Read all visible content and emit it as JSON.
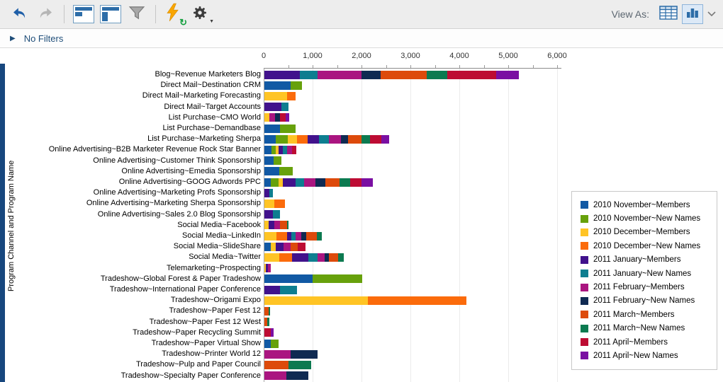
{
  "toolbar": {
    "view_as_label": "View As:",
    "icons": [
      "undo-icon",
      "redo-icon",
      "panel-layout-icon",
      "panel-sidebar-icon",
      "filter-funnel-icon",
      "lightning-refresh-icon",
      "gear-icon",
      "table-view-icon",
      "bar-chart-view-icon",
      "chevron-down-icon"
    ],
    "colors": {
      "toolbar_bg": "#ededed",
      "accent_blue": "#1f5fa8",
      "disabled_gray": "#b5b5b5"
    }
  },
  "filter_bar": {
    "label": "No Filters"
  },
  "chart_data": {
    "type": "bar",
    "orientation": "horizontal",
    "stacked": true,
    "title": "",
    "xlabel": "",
    "ylabel": "Program Channel and Program Name",
    "xlim": [
      0,
      6000
    ],
    "x_ticks": [
      0,
      1000,
      2000,
      3000,
      4000,
      5000,
      6000
    ],
    "grid": "vertical-light",
    "legend_position": "right",
    "series": [
      {
        "key": "novM",
        "label": "2010 November~Members",
        "color": "#1159a4"
      },
      {
        "key": "novN",
        "label": "2010 November~New Names",
        "color": "#67a10b"
      },
      {
        "key": "decM",
        "label": "2010 December~Members",
        "color": "#ffc425"
      },
      {
        "key": "decN",
        "label": "2010 December~New Names",
        "color": "#fb6b0b"
      },
      {
        "key": "janM",
        "label": "2011 January~Members",
        "color": "#41128c"
      },
      {
        "key": "janN",
        "label": "2011 January~New Names",
        "color": "#0e7e90"
      },
      {
        "key": "febM",
        "label": "2011 February~Members",
        "color": "#aa1580"
      },
      {
        "key": "febN",
        "label": "2011 February~New Names",
        "color": "#0f2a52"
      },
      {
        "key": "marM",
        "label": "2011 March~Members",
        "color": "#dd4a0b"
      },
      {
        "key": "marN",
        "label": "2011 March~New Names",
        "color": "#0c7a50"
      },
      {
        "key": "aprM",
        "label": "2011 April~Members",
        "color": "#bd0c33"
      },
      {
        "key": "aprN",
        "label": "2011 April~New Names",
        "color": "#7a0fa2"
      }
    ],
    "rows": [
      {
        "label": "Blog~Revenue Marketers Blog",
        "segments": [
          [
            "janM",
            730
          ],
          [
            "janN",
            350
          ],
          [
            "febM",
            910
          ],
          [
            "febN",
            385
          ],
          [
            "marM",
            950
          ],
          [
            "marN",
            420
          ],
          [
            "aprM",
            1000
          ],
          [
            "aprN",
            465
          ]
        ]
      },
      {
        "label": "Direct Mail~Destination CRM",
        "segments": [
          [
            "novM",
            540
          ],
          [
            "novN",
            225
          ]
        ]
      },
      {
        "label": "Direct Mail~Marketing Forecasting",
        "segments": [
          [
            "decM",
            470
          ],
          [
            "decN",
            165
          ]
        ]
      },
      {
        "label": "Direct Mail~Target Accounts",
        "segments": [
          [
            "janM",
            350
          ],
          [
            "janN",
            145
          ]
        ]
      },
      {
        "label": "List Purchase~CMO World",
        "segments": [
          [
            "decM",
            105
          ],
          [
            "febM",
            115
          ],
          [
            "febN",
            95
          ],
          [
            "aprM",
            120
          ],
          [
            "aprN",
            70
          ]
        ]
      },
      {
        "label": "List Purchase~Demandbase",
        "segments": [
          [
            "novM",
            325
          ],
          [
            "novN",
            315
          ]
        ]
      },
      {
        "label": "List Purchase~Marketing Sherpa",
        "segments": [
          [
            "novM",
            235
          ],
          [
            "novN",
            240
          ],
          [
            "decM",
            185
          ],
          [
            "decN",
            225
          ],
          [
            "janM",
            230
          ],
          [
            "janN",
            210
          ],
          [
            "febM",
            240
          ],
          [
            "febN",
            145
          ],
          [
            "marM",
            275
          ],
          [
            "marN",
            170
          ],
          [
            "aprM",
            240
          ],
          [
            "aprN",
            155
          ]
        ]
      },
      {
        "label": "Online Advertising~B2B Marketer Revenue Rock Star Banner",
        "segments": [
          [
            "novM",
            140
          ],
          [
            "novN",
            95
          ],
          [
            "decM",
            60
          ],
          [
            "janM",
            85
          ],
          [
            "janN",
            85
          ],
          [
            "febM",
            95
          ],
          [
            "aprM",
            90
          ]
        ]
      },
      {
        "label": "Online Advertising~Customer Think Sponsorship",
        "segments": [
          [
            "novM",
            195
          ],
          [
            "novN",
            155
          ]
        ]
      },
      {
        "label": "Online Advertising~Emedia Sponsorship",
        "segments": [
          [
            "novM",
            300
          ],
          [
            "novN",
            280
          ]
        ]
      },
      {
        "label": "Online Advertising~GOOG Adwords PPC",
        "segments": [
          [
            "novM",
            130
          ],
          [
            "novN",
            160
          ],
          [
            "decM",
            85
          ],
          [
            "janM",
            265
          ],
          [
            "janN",
            170
          ],
          [
            "febM",
            240
          ],
          [
            "febN",
            195
          ],
          [
            "marM",
            290
          ],
          [
            "marN",
            215
          ],
          [
            "aprM",
            240
          ],
          [
            "aprN",
            230
          ]
        ]
      },
      {
        "label": "Online Advertising~Marketing Profs Sponsorship",
        "segments": [
          [
            "janM",
            105
          ],
          [
            "janN",
            72
          ]
        ]
      },
      {
        "label": "Online Advertising~Marketing Sherpa Sponsorship",
        "segments": [
          [
            "decM",
            205
          ],
          [
            "decN",
            210
          ]
        ]
      },
      {
        "label": "Online Advertising~Sales 2.0 Blog Sponsorship",
        "segments": [
          [
            "janM",
            180
          ],
          [
            "janN",
            145
          ]
        ]
      },
      {
        "label": "Social Media~Facebook",
        "segments": [
          [
            "decM",
            90
          ],
          [
            "janM",
            110
          ],
          [
            "febM",
            125
          ],
          [
            "marM",
            135
          ],
          [
            "marN",
            30
          ]
        ]
      },
      {
        "label": "Social Media~LinkedIn",
        "segments": [
          [
            "decM",
            250
          ],
          [
            "decN",
            215
          ],
          [
            "janM",
            90
          ],
          [
            "janN",
            85
          ],
          [
            "febM",
            120
          ],
          [
            "febN",
            95
          ],
          [
            "marM",
            215
          ],
          [
            "marN",
            105
          ]
        ]
      },
      {
        "label": "Social Media~SlideShare",
        "segments": [
          [
            "novM",
            130
          ],
          [
            "decM",
            95
          ],
          [
            "janM",
            160
          ],
          [
            "febM",
            145
          ],
          [
            "marM",
            145
          ],
          [
            "aprM",
            170
          ]
        ]
      },
      {
        "label": "Social Media~Twitter",
        "segments": [
          [
            "decM",
            300
          ],
          [
            "decN",
            265
          ],
          [
            "janM",
            340
          ],
          [
            "janN",
            180
          ],
          [
            "febM",
            145
          ],
          [
            "febN",
            85
          ],
          [
            "marM",
            195
          ],
          [
            "marN",
            120
          ]
        ]
      },
      {
        "label": "Telemarketing~Prospecting",
        "segments": [
          [
            "decM",
            35
          ],
          [
            "janM",
            40
          ],
          [
            "febM",
            50
          ]
        ]
      },
      {
        "label": "Tradeshow~Global Forest & Paper Tradeshow",
        "segments": [
          [
            "novM",
            985
          ],
          [
            "novN",
            1015
          ]
        ]
      },
      {
        "label": "Tradeshow~International Paper Conference",
        "segments": [
          [
            "janM",
            325
          ],
          [
            "janN",
            340
          ]
        ]
      },
      {
        "label": "Tradeshow~Origami Expo",
        "segments": [
          [
            "decM",
            2110
          ],
          [
            "decN",
            2020
          ]
        ]
      },
      {
        "label": "Tradeshow~Paper Fest 12",
        "segments": [
          [
            "marM",
            85
          ],
          [
            "marN",
            35
          ]
        ]
      },
      {
        "label": "Tradeshow~Paper Fest 12 West",
        "segments": [
          [
            "marM",
            60
          ],
          [
            "marN",
            35
          ]
        ]
      },
      {
        "label": "Tradeshow~Paper Recycling Summit",
        "segments": [
          [
            "aprM",
            130
          ],
          [
            "aprN",
            62
          ]
        ]
      },
      {
        "label": "Tradeshow~Paper Virtual Show",
        "segments": [
          [
            "novM",
            130
          ],
          [
            "novN",
            155
          ]
        ]
      },
      {
        "label": "Tradeshow~Printer World 12",
        "segments": [
          [
            "febM",
            535
          ],
          [
            "febN",
            550
          ]
        ]
      },
      {
        "label": "Tradeshow~Pulp and Paper Council",
        "segments": [
          [
            "marM",
            495
          ],
          [
            "marN",
            460
          ]
        ]
      },
      {
        "label": "Tradeshow~Specialty Paper Conference",
        "segments": [
          [
            "febM",
            445
          ],
          [
            "febN",
            460
          ]
        ]
      }
    ]
  }
}
